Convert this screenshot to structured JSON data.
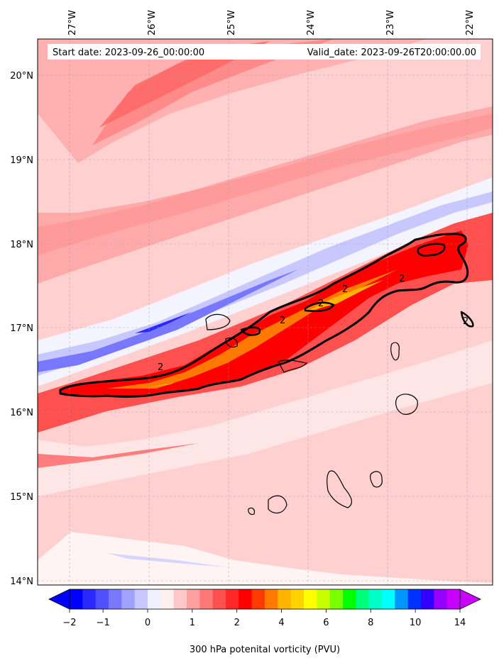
{
  "header": {
    "start_date": "Start date: 2023-09-26_00:00:00",
    "valid_date": "Valid_date: 2023-09-26T20:00:00.00"
  },
  "map": {
    "lon_range": [
      -27.42,
      -21.58
    ],
    "lat_range": [
      13.95,
      20.42
    ],
    "lon_ticks": [
      "27°W",
      "26°W",
      "25°W",
      "24°W",
      "23°W",
      "22°W"
    ],
    "lat_ticks": [
      "20°N",
      "19°N",
      "18°N",
      "17°N",
      "16°N",
      "15°N",
      "14°N"
    ],
    "contour_label": "2",
    "grid": "dashed-gray",
    "coastlines": "Cabo Verde islands"
  },
  "colorbar": {
    "label": "300 hPa potenital vorticity (PVU)",
    "tick_labels": [
      "−2",
      "−1",
      "0",
      "1",
      "2",
      "4",
      "6",
      "8",
      "10",
      "14"
    ],
    "colors": [
      "#0000ff",
      "#2828ff",
      "#5050ff",
      "#7878ff",
      "#a0a0ff",
      "#c8c8ff",
      "#f0f0ff",
      "#fff0f0",
      "#ffc8c8",
      "#ffa0a0",
      "#ff7878",
      "#ff5050",
      "#ff2828",
      "#ff0000",
      "#ff3c00",
      "#ff7800",
      "#ffb400",
      "#ffd200",
      "#ffff00",
      "#c8ff00",
      "#78ff00",
      "#00ff00",
      "#00ff78",
      "#00ffc8",
      "#00ffff",
      "#0096ff",
      "#0032ff",
      "#3200ff",
      "#9600ff",
      "#c800ff"
    ],
    "under_color": "#0000ff",
    "over_color": "#c800ff"
  }
}
